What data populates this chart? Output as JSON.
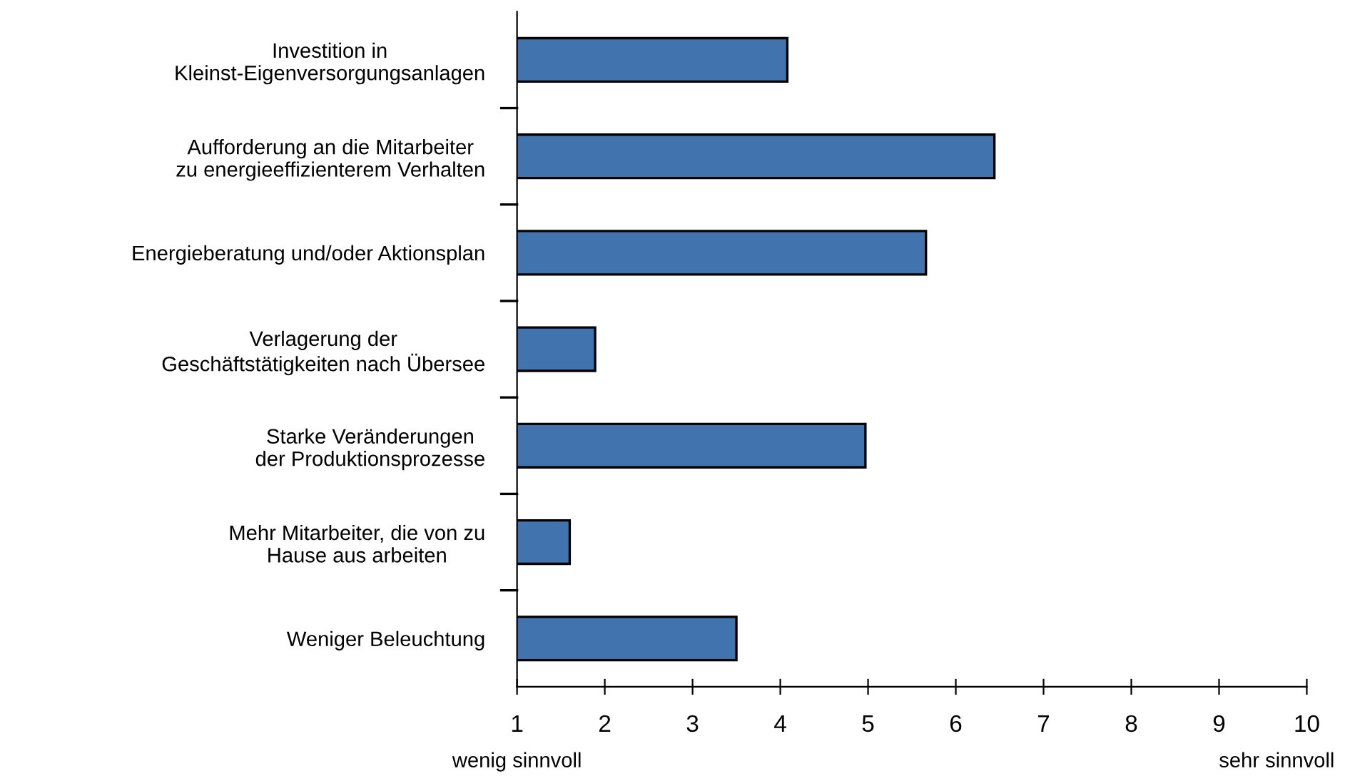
{
  "chart_data": {
    "type": "bar",
    "orientation": "horizontal",
    "categories": [
      "Investition in\nKleinst-Eigenversorgungsanlagen",
      "Aufforderung an die Mitarbeiter\nzu energieeffizienterem Verhalten",
      "Energieberatung und/oder Aktionsplan",
      "Verlagerung der\nGeschäftstätigkeiten nach Übersee",
      "Starke Veränderungen\nder Produktionsprozesse",
      "Mehr Mitarbeiter, die von zu\nHause aus arbeiten",
      "Weniger Beleuchtung"
    ],
    "values": [
      4.08,
      6.44,
      5.66,
      1.89,
      4.97,
      1.6,
      3.5
    ],
    "color": "#4174ae",
    "xlim": [
      1,
      10
    ],
    "xticks": [
      1,
      2,
      3,
      4,
      5,
      6,
      7,
      8,
      9,
      10
    ],
    "annotations": [
      "wenig sinnvoll",
      "sehr sinnvoll"
    ],
    "grid": false,
    "legend": false
  }
}
